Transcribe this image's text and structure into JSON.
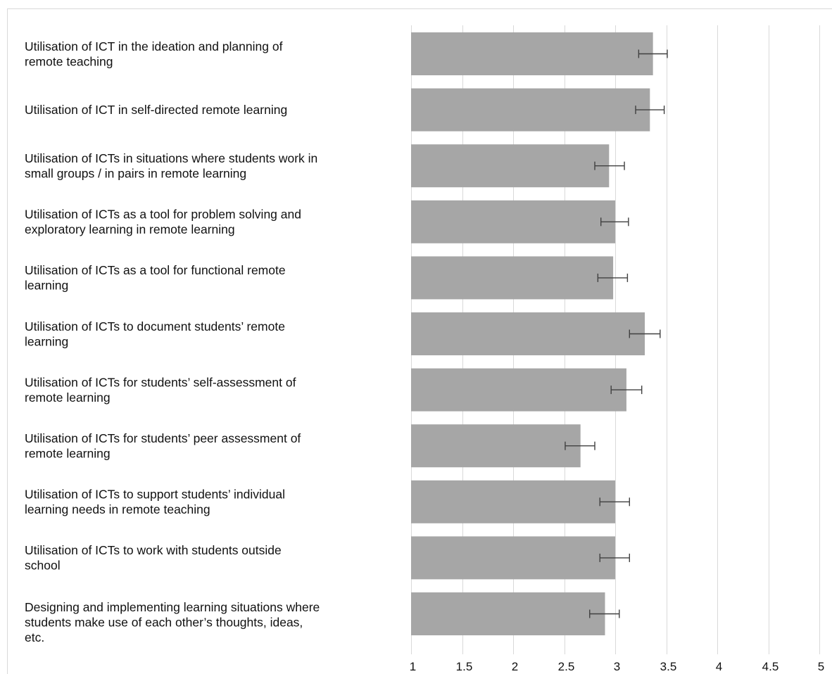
{
  "chart_data": {
    "type": "bar",
    "orientation": "horizontal",
    "categories": [
      [
        "Utilisation of ICT in the ideation and planning of",
        "remote teaching"
      ],
      [
        "Utilisation of ICT in self-directed remote learning"
      ],
      [
        "Utilisation of ICTs in situations where students work in",
        "small groups / in pairs in remote learning"
      ],
      [
        "Utilisation of ICTs as a tool for problem solving and",
        "exploratory learning in remote learning"
      ],
      [
        "Utilisation of ICTs as a tool for functional remote",
        "learning"
      ],
      [
        "Utilisation of ICTs to document students’ remote",
        "learning"
      ],
      [
        "Utilisation of ICTs for students’ self-assessment of",
        "remote learning"
      ],
      [
        "Utilisation of ICTs for students’ peer assessment of",
        "remote learning"
      ],
      [
        "Utilisation of ICTs to support students’ individual",
        "learning needs in remote teaching"
      ],
      [
        "Utilisation of ICTs to work with students outside",
        "school"
      ],
      [
        "Designing and implementing learning situations where",
        "students make use of each other’s thoughts, ideas,",
        "etc."
      ]
    ],
    "values": [
      3.37,
      3.34,
      2.94,
      3.0,
      2.98,
      3.29,
      3.11,
      2.66,
      3.0,
      3.0,
      2.9
    ],
    "error_low": [
      3.23,
      3.2,
      2.8,
      2.86,
      2.83,
      3.14,
      2.96,
      2.51,
      2.85,
      2.85,
      2.75
    ],
    "error_high": [
      3.51,
      3.48,
      3.09,
      3.13,
      3.12,
      3.44,
      3.26,
      2.8,
      3.14,
      3.14,
      3.04
    ],
    "xlim": [
      1,
      5
    ],
    "xticks": [
      "1",
      "1.5",
      "2",
      "2.5",
      "3",
      "3.5",
      "4",
      "4.5",
      "5"
    ],
    "grid": true,
    "title": "",
    "xlabel": "",
    "ylabel": "",
    "colors": {
      "bar": "#a6a6a6",
      "grid": "#d9d9d9",
      "error_bar": "#404040",
      "text": "#111111"
    }
  }
}
